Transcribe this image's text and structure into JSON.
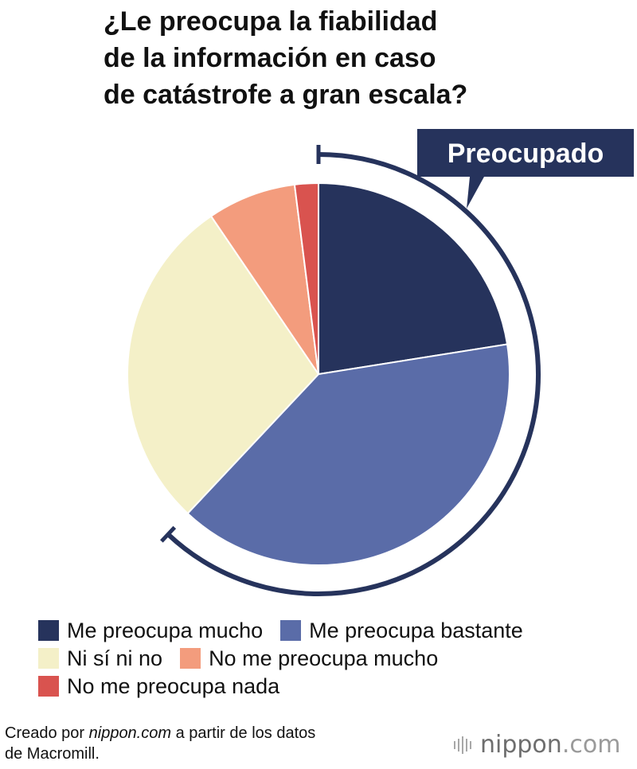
{
  "title_lines": [
    "¿Le preocupa la fiabilidad",
    "de la información en caso",
    "de catástrofe a gran escala?"
  ],
  "callout_label": "Preocupado",
  "chart_data": {
    "type": "pie",
    "title": "¿Le preocupa la fiabilidad de la información en caso de catástrofe a gran escala?",
    "categories": [
      "Me preocupa mucho",
      "Me preocupa bastante",
      "Ni sí ni no",
      "No me preocupa mucho",
      "No me preocupa nada"
    ],
    "values": [
      22.5,
      39.5,
      28.5,
      7.5,
      2.0
    ],
    "colors": [
      "#26335c",
      "#5a6ca8",
      "#f4f0c8",
      "#f39c7d",
      "#d9534f"
    ],
    "unit": "%",
    "grouping": {
      "label": "Preocupado",
      "members": [
        "Me preocupa mucho",
        "Me preocupa bastante"
      ]
    }
  },
  "legend": {
    "rows": [
      [
        {
          "label": "Me preocupa mucho",
          "color": "#26335c"
        },
        {
          "label": "Me preocupa bastante",
          "color": "#5a6ca8"
        }
      ],
      [
        {
          "label": "Ni sí ni no",
          "color": "#f4f0c8"
        },
        {
          "label": "No me preocupa mucho",
          "color": "#f39c7d"
        }
      ],
      [
        {
          "label": "No me preocupa nada",
          "color": "#d9534f"
        }
      ]
    ]
  },
  "footer": {
    "prefix": "Creado por ",
    "source_link": "nippon.com",
    "suffix": " a partir de los datos",
    "line2": "de Macromill."
  },
  "brand": {
    "name": "nippon",
    "tld": ".com"
  }
}
